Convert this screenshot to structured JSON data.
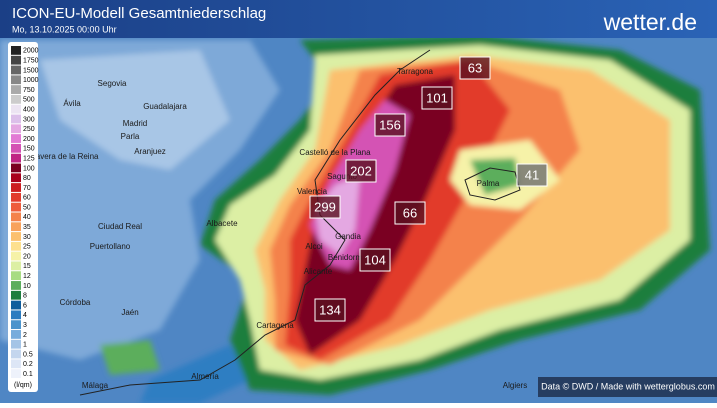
{
  "header": {
    "title": "ICON-EU-Modell Gesamtniederschlag",
    "subtitle": "Mo, 13.10.2025 00:00 Uhr",
    "brand": "wetter.de"
  },
  "legend": {
    "labels": [
      2000,
      1750,
      1500,
      1000,
      750,
      500,
      400,
      300,
      250,
      200,
      150,
      125,
      100,
      80,
      70,
      60,
      50,
      40,
      35,
      30,
      25,
      20,
      15,
      12,
      10,
      8,
      6,
      4,
      3,
      2,
      1,
      0.5,
      0.2,
      0.1
    ],
    "colors": [
      "#222222",
      "#444444",
      "#666666",
      "#888888",
      "#aaaaaa",
      "#cccccc",
      "#ece4f2",
      "#dcc0ea",
      "#e4a8e2",
      "#e27ad4",
      "#d452b4",
      "#c02484",
      "#7a0020",
      "#a8001c",
      "#cc1c20",
      "#e23a2c",
      "#ee5c3c",
      "#f4824c",
      "#f8a25c",
      "#fbc06e",
      "#fde08e",
      "#f6f2a8",
      "#dcefa4",
      "#a8dc82",
      "#5cae5c",
      "#1e7e3e",
      "#0e5c9c",
      "#2c7cc0",
      "#4c94cc",
      "#78acdc",
      "#a4c4e6",
      "#c4d6ee",
      "#dde6f6",
      "#eef2fb"
    ],
    "unit": "(l/qm)"
  },
  "value_labels": [
    63,
    101,
    156,
    202,
    299,
    66,
    104,
    134,
    41
  ],
  "places": [
    "Tarragona",
    "Segovia",
    "Ávila",
    "Guadalajara",
    "Madrid",
    "Parla",
    "Aranjuez",
    "Talavera de la Reina",
    "Castelló de la Plana",
    "Sagunto",
    "Valencia",
    "Albacete",
    "Ciudad Real",
    "Gandia",
    "Puertollano",
    "Alcoi",
    "Benidorm",
    "Alicante",
    "Palma",
    "Córdoba",
    "Jaén",
    "Cartagena",
    "Almería",
    "Málaga",
    "Algiers"
  ],
  "footer": "Data © DWD / Made with wetterglobus.com"
}
